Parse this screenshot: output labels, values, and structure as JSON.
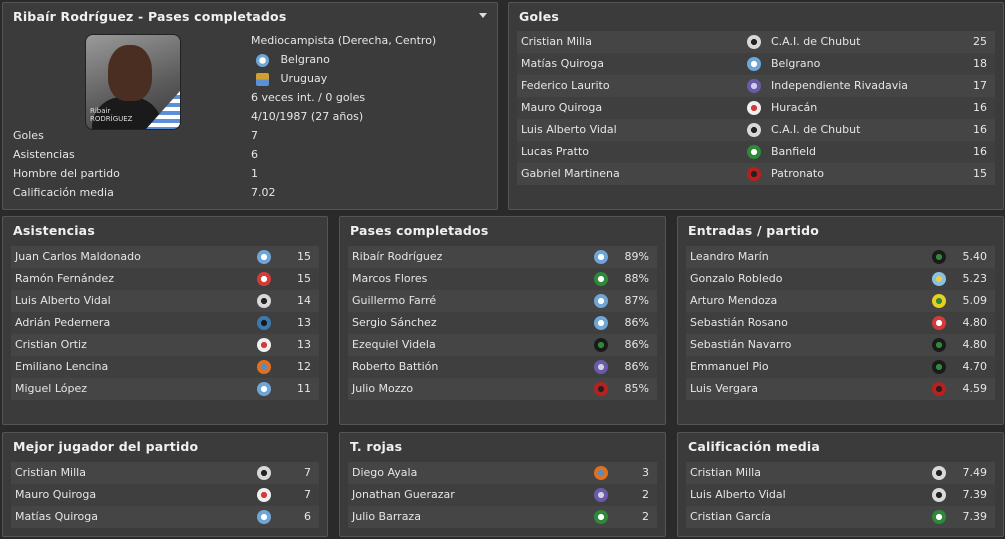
{
  "profile": {
    "title": "Ribaír Rodríguez - Pases completados",
    "position": "Mediocampista (Derecha, Centro)",
    "club": "Belgrano",
    "nation": "Uruguay",
    "caps": "6 veces int. / 0 goles",
    "dob": "4/10/1987 (27 años)",
    "photo_caption_1": "Ribair",
    "photo_caption_2": "RODRÍGUEZ",
    "stats": [
      {
        "label": "Goles",
        "value": "7"
      },
      {
        "label": "Asistencias",
        "value": "6"
      },
      {
        "label": "Hombre del partido",
        "value": "1"
      },
      {
        "label": "Calificación media",
        "value": "7.02"
      }
    ]
  },
  "goles": {
    "title": "Goles",
    "rows": [
      {
        "name": "Cristian Milla",
        "team": "C.A.I. de Chubut",
        "value": "25",
        "badge": "#d8d8d8",
        "badge2": "#222"
      },
      {
        "name": "Matías Quiroga",
        "team": "Belgrano",
        "value": "18",
        "badge": "#6fa6d8",
        "badge2": "#ffffff"
      },
      {
        "name": "Federico Laurito",
        "team": "Independiente Rivadavia",
        "value": "17",
        "badge": "#6a5aa8",
        "badge2": "#cfcfe8"
      },
      {
        "name": "Mauro Quiroga",
        "team": "Huracán",
        "value": "16",
        "badge": "#f0f0f0",
        "badge2": "#d43a3a"
      },
      {
        "name": "Luis Alberto Vidal",
        "team": "C.A.I. de Chubut",
        "value": "16",
        "badge": "#d8d8d8",
        "badge2": "#222"
      },
      {
        "name": "Lucas Pratto",
        "team": "Banfield",
        "value": "16",
        "badge": "#2e8a3a",
        "badge2": "#ffffff"
      },
      {
        "name": "Gabriel Martinena",
        "team": "Patronato",
        "value": "15",
        "badge": "#b82020",
        "badge2": "#222"
      }
    ]
  },
  "asistencias": {
    "title": "Asistencias",
    "rows": [
      {
        "name": "Juan Carlos Maldonado",
        "value": "15",
        "badge": "#6fa6d8",
        "badge2": "#ffffff"
      },
      {
        "name": "Ramón Fernández",
        "value": "15",
        "badge": "#d43a3a",
        "badge2": "#ffffff"
      },
      {
        "name": "Luis Alberto Vidal",
        "value": "14",
        "badge": "#d8d8d8",
        "badge2": "#222"
      },
      {
        "name": "Adrián Pedernera",
        "value": "13",
        "badge": "#3a7ab0",
        "badge2": "#1a1a1a"
      },
      {
        "name": "Cristian Ortiz",
        "value": "13",
        "badge": "#f0f0f0",
        "badge2": "#d43a3a"
      },
      {
        "name": "Emiliano Lencina",
        "value": "12",
        "badge": "#e07020",
        "badge2": "#4a90d0"
      },
      {
        "name": "Miguel López",
        "value": "11",
        "badge": "#6fa6d8",
        "badge2": "#ffffff"
      }
    ]
  },
  "pases": {
    "title": "Pases completados",
    "rows": [
      {
        "name": "Ribaír Rodríguez",
        "value": "89%",
        "badge": "#6fa6d8",
        "badge2": "#ffffff"
      },
      {
        "name": "Marcos Flores",
        "value": "88%",
        "badge": "#2e8a3a",
        "badge2": "#ffffff"
      },
      {
        "name": "Guillermo Farré",
        "value": "87%",
        "badge": "#6fa6d8",
        "badge2": "#ffffff"
      },
      {
        "name": "Sergio Sánchez",
        "value": "86%",
        "badge": "#6fa6d8",
        "badge2": "#ffffff"
      },
      {
        "name": "Ezequiel Videla",
        "value": "86%",
        "badge": "#1a1a1a",
        "badge2": "#2e8a3a"
      },
      {
        "name": "Roberto Battión",
        "value": "86%",
        "badge": "#6a5aa8",
        "badge2": "#cfcfe8"
      },
      {
        "name": "Julio Mozzo",
        "value": "85%",
        "badge": "#b82020",
        "badge2": "#222"
      }
    ]
  },
  "entradas": {
    "title": "Entradas / partido",
    "rows": [
      {
        "name": "Leandro Marín",
        "value": "5.40",
        "badge": "#1a1a1a",
        "badge2": "#2e8a3a"
      },
      {
        "name": "Gonzalo Robledo",
        "value": "5.23",
        "badge": "#8ac0e8",
        "badge2": "#e8d040"
      },
      {
        "name": "Arturo Mendoza",
        "value": "5.09",
        "badge": "#e8d020",
        "badge2": "#2e8a3a"
      },
      {
        "name": "Sebastián Rosano",
        "value": "4.80",
        "badge": "#d43a3a",
        "badge2": "#ffffff"
      },
      {
        "name": "Sebastián Navarro",
        "value": "4.80",
        "badge": "#1a1a1a",
        "badge2": "#2e8a3a"
      },
      {
        "name": "Emmanuel Pio",
        "value": "4.70",
        "badge": "#1a1a1a",
        "badge2": "#2e8a3a"
      },
      {
        "name": "Luis Vergara",
        "value": "4.59",
        "badge": "#b82020",
        "badge2": "#222"
      }
    ]
  },
  "mejor": {
    "title": "Mejor jugador del partido",
    "rows": [
      {
        "name": "Cristian Milla",
        "value": "7",
        "badge": "#d8d8d8",
        "badge2": "#222"
      },
      {
        "name": "Mauro Quiroga",
        "value": "7",
        "badge": "#f0f0f0",
        "badge2": "#d43a3a"
      },
      {
        "name": "Matías Quiroga",
        "value": "6",
        "badge": "#6fa6d8",
        "badge2": "#ffffff"
      }
    ]
  },
  "rojas": {
    "title": "T. rojas",
    "rows": [
      {
        "name": "Diego Ayala",
        "value": "3",
        "badge": "#e07020",
        "badge2": "#4a90d0"
      },
      {
        "name": "Jonathan Guerazar",
        "value": "2",
        "badge": "#6a5aa8",
        "badge2": "#cfcfe8"
      },
      {
        "name": "Julio Barraza",
        "value": "2",
        "badge": "#2e8a3a",
        "badge2": "#ffffff"
      }
    ]
  },
  "calificacion": {
    "title": "Calificación media",
    "rows": [
      {
        "name": "Cristian Milla",
        "value": "7.49",
        "badge": "#d8d8d8",
        "badge2": "#222"
      },
      {
        "name": "Luis Alberto Vidal",
        "value": "7.39",
        "badge": "#d8d8d8",
        "badge2": "#222"
      },
      {
        "name": "Cristian García",
        "value": "7.39",
        "badge": "#2e8a3a",
        "badge2": "#ffffff"
      }
    ]
  }
}
